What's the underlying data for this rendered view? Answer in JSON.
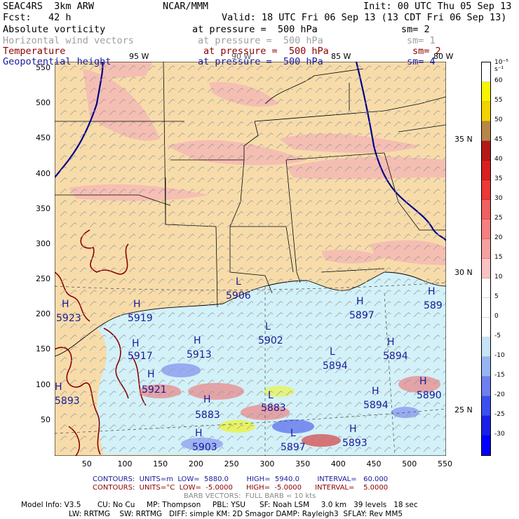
{
  "header": {
    "model": "SEAC4RS  3km ARW",
    "org": "NCAR/MMM",
    "init": "Init: 00 UTC Thu 05 Sep 13",
    "fcst": "Fcst:   42 h",
    "valid": "Valid: 18 UTC Fri 06 Sep 13 (13 CDT Fri 06 Sep 13)"
  },
  "fields": [
    {
      "name": "Absolute vorticity",
      "level": "at pressure =  500 hPa",
      "sm": "sm= 2",
      "color": "#000000"
    },
    {
      "name": "Horizontal wind vectors",
      "level": "at pressure =  500 hPa",
      "sm": "sm= 1",
      "color": "#a0a0a0"
    },
    {
      "name": "Temperature",
      "level": "at pressure =  500 hPa",
      "sm": "sm= 2",
      "color": "#8b0000"
    },
    {
      "name": "Geopotential height",
      "level": "at pressure =  500 hPa",
      "sm": "sm= 4",
      "color": "#1a1a9a"
    }
  ],
  "axes": {
    "x_ticks": [
      "50",
      "100",
      "150",
      "200",
      "250",
      "300",
      "350",
      "400",
      "450",
      "500",
      "550"
    ],
    "y_ticks": [
      "50",
      "100",
      "150",
      "200",
      "250",
      "300",
      "350",
      "400",
      "450",
      "500",
      "550"
    ],
    "lon_labels": [
      "95 W",
      "90 W",
      "85 W",
      "80 W"
    ],
    "lat_labels": [
      "35 N",
      "30 N",
      "25 N"
    ]
  },
  "height_labels": [
    {
      "type": "H",
      "value": "5923"
    },
    {
      "type": "H",
      "value": "5919"
    },
    {
      "type": "L",
      "value": "5906"
    },
    {
      "type": "L",
      "value": "5902"
    },
    {
      "type": "H",
      "value": "5897"
    },
    {
      "type": "H",
      "value": "589"
    },
    {
      "type": "H",
      "value": "5913"
    },
    {
      "type": "L",
      "value": "5894"
    },
    {
      "type": "H",
      "value": "5894"
    },
    {
      "type": "H",
      "value": "5917"
    },
    {
      "type": "H",
      "value": "5894"
    },
    {
      "type": "H",
      "value": "5890"
    },
    {
      "type": "H",
      "value": "5893"
    },
    {
      "type": "H",
      "value": "5883"
    },
    {
      "type": "L",
      "value": "5883"
    },
    {
      "type": "L",
      "value": "5897"
    },
    {
      "type": "H",
      "value": "5893"
    },
    {
      "type": "H",
      "value": "5921"
    },
    {
      "type": "H",
      "value": "5903"
    }
  ],
  "colorbar": {
    "unit": "10⁻⁵ s⁻¹",
    "labels": [
      "60",
      "55",
      "50",
      "45",
      "40",
      "35",
      "30",
      "25",
      "20",
      "15",
      "10",
      "5",
      "0",
      "-5",
      "-10",
      "-15",
      "-20",
      "-25",
      "-30"
    ],
    "colors": [
      "#ffffff",
      "#f5f500",
      "#f2d200",
      "#b8864a",
      "#b41a1a",
      "#d82020",
      "#ec3838",
      "#f06060",
      "#f58080",
      "#f7a0a0",
      "#fac2c2",
      "#ffffff",
      "#ffffff",
      "#ffffff",
      "#c6e3f7",
      "#96b5f3",
      "#6f7ff0",
      "#3a4ff0",
      "#1a20e8",
      "#0000ff"
    ]
  },
  "footer": {
    "contours_hgt": "CONTOURS:  UNITS=m  LOW=  5880.0        HIGH=  5940.0        INTERVAL=   60.000",
    "contours_tmp": "CONTOURS:  UNITS=°C  LOW=  -5.0000      HIGH=  -5.0000      INTERVAL=    5.0000",
    "barbs": "BARB VECTORS:  FULL BARB = 10 kts",
    "model_info_1": "Model Info: V3.5       CU: No Cu     MP: Thompson     PBL: YSU      SF: Noah LSM     3.0 km   39 levels   18 sec",
    "model_info_2": "LW: RRTMG    SW: RRTMG   DIFF: simple KM: 2D Smagor DAMP: Rayleigh3  SFLAY: Rev MM5"
  }
}
